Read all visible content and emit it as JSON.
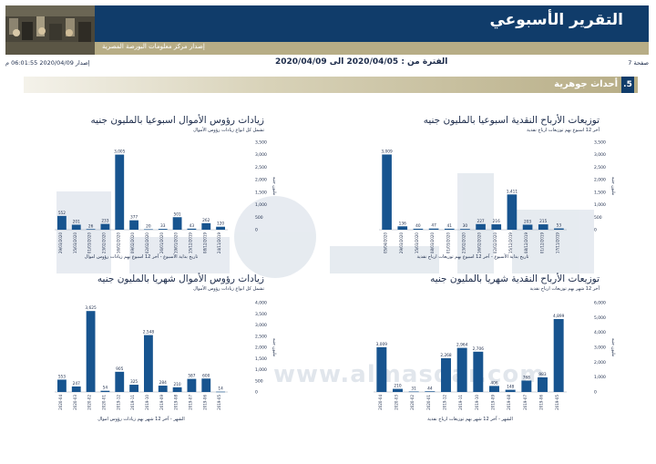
{
  "header": {
    "title": "التقرير الأسبوعي",
    "subtitle": "إصدار مركز معلومات البورصة المصرية",
    "page": "صفحة 7",
    "period": "الفترة من : 2020/04/05 الى 2020/04/09",
    "issued": "إصدار 2020/04/09 06:01:55 م"
  },
  "section": {
    "number": ".5",
    "label": "أحداث جوهرية"
  },
  "watermark": {
    "url": "www.almasdar.com"
  },
  "colors": {
    "navy": "#103c6a",
    "khaki": "#b7ad86",
    "bar": "#17548f"
  },
  "charts": [
    {
      "title": "زيادات رؤوس الأموال اسبوعيا بالمليون جنيه",
      "subtitle": "تشمل كل انواع زيادات رؤوس الأموال",
      "axis_label": "مليون جنيه",
      "xlabel": "تاريخ بداية الأسبوع - آخر 12 اسبوع بهم زيادات رؤوس اموال",
      "chart_data": {
        "type": "bar",
        "categories": [
          "29/03/2020",
          "15/03/2020",
          "01/03/2020",
          "23/02/2020",
          "16/02/2020",
          "09/02/2020",
          "02/02/2020",
          "26/01/2020",
          "19/01/2020",
          "15/12/2019",
          "08/12/2019",
          "24/11/2019"
        ],
        "values": [
          552,
          201,
          26,
          233,
          3005,
          377,
          20,
          33,
          501,
          43,
          262,
          120
        ],
        "ylim": [
          0,
          3500
        ],
        "yticks": [
          "0",
          "500",
          "1,000",
          "1,500",
          "2,000",
          "2,500",
          "3,000",
          "3,500"
        ]
      }
    },
    {
      "title": "توزيعات الأرباح النقدية اسبوعيا بالمليون جنيه",
      "subtitle": "آخر 12 اسبوع بهم توزيعات ارباح نقدية",
      "axis_label": "مليون جنيه",
      "xlabel": "تاريخ بداية الأسبوع - آخر 12 اسبوع بهم توزيعات ارباح نقدية",
      "chart_data": {
        "type": "bar",
        "categories": [
          "05/04/2020",
          "29/03/2020",
          "15/03/2020",
          "08/03/2020",
          "01/03/2020",
          "23/02/2020",
          "16/02/2020",
          "02/02/2020",
          "15/12/2019",
          "08/12/2019",
          "01/12/2019",
          "17/11/2019"
        ],
        "values": [
          3009,
          136,
          40,
          47,
          41,
          30,
          227,
          216,
          1411,
          203,
          215,
          53
        ],
        "ylim": [
          0,
          3500
        ],
        "yticks": [
          "0",
          "500",
          "1,000",
          "1,500",
          "2,000",
          "2,500",
          "3,000",
          "3,500"
        ]
      }
    },
    {
      "title": "زيادات رؤوس الأموال شهريا بالمليون جنيه",
      "subtitle": "تشمل كل انواع زيادات رؤوس الأموال",
      "axis_label": "مليون جنيه",
      "xlabel": "الشهر - آخر 12 شهر بهم زيادات رؤوس اموال",
      "chart_data": {
        "type": "bar",
        "categories": [
          "2020-04",
          "2020-03",
          "2020-02",
          "2020-01",
          "2019-12",
          "2019-11",
          "2019-10",
          "2019-09",
          "2019-08",
          "2019-07",
          "2019-06",
          "2019-05"
        ],
        "values": [
          553,
          247,
          3625,
          54,
          905,
          325,
          2548,
          284,
          210,
          587,
          600,
          14
        ],
        "ylim": [
          0,
          4000
        ],
        "yticks": [
          "0",
          "500",
          "1,000",
          "1,500",
          "2,000",
          "2,500",
          "3,000",
          "3,500",
          "4,000"
        ]
      }
    },
    {
      "title": "توزيعات الأرباح النقدية شهريا بالمليون جنيه",
      "subtitle": "آخر 12 شهر بهم توزيعات ارباح نقدية",
      "axis_label": "مليون جنيه",
      "xlabel": "الشهر - آخر 12 شهر بهم توزيعات ارباح نقدية",
      "chart_data": {
        "type": "bar",
        "categories": [
          "2020-04",
          "2020-03",
          "2020-02",
          "2020-01",
          "2019-12",
          "2019-11",
          "2019-10",
          "2019-09",
          "2019-08",
          "2019-07",
          "2019-06",
          "2019-05"
        ],
        "values": [
          3009,
          210,
          31,
          44,
          2268,
          2964,
          2706,
          406,
          148,
          768,
          983,
          4899
        ],
        "ylim": [
          0,
          6000
        ],
        "yticks": [
          "0",
          "1,000",
          "2,000",
          "3,000",
          "4,000",
          "5,000",
          "6,000"
        ]
      }
    }
  ]
}
